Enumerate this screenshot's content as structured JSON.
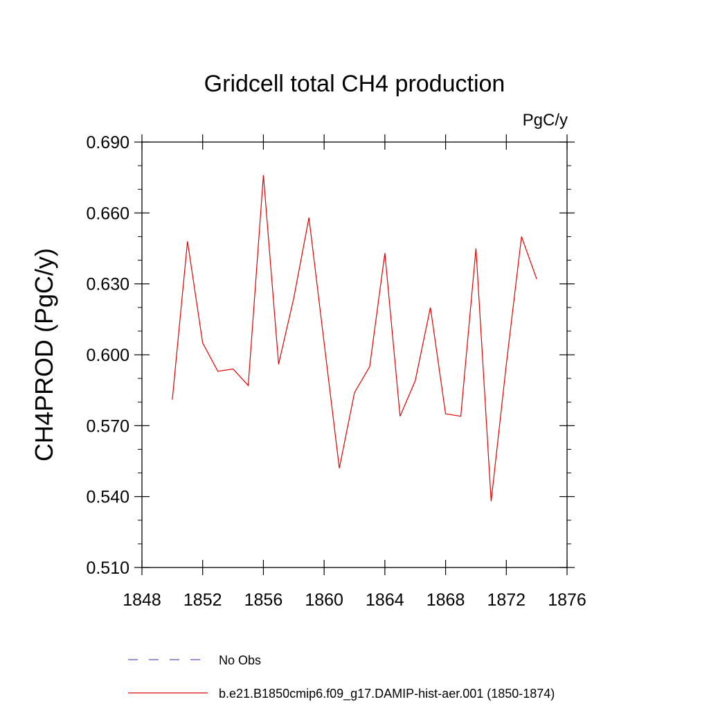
{
  "chart_data": {
    "type": "line",
    "title": "Gridcell total CH4 production",
    "units_label": "PgC/y",
    "ylabel": "CH4PROD  (PgC/y)",
    "xlabel": "",
    "xlim": [
      1848,
      1876
    ],
    "ylim": [
      0.51,
      0.69
    ],
    "x_ticks": [
      1848,
      1852,
      1856,
      1860,
      1864,
      1868,
      1872,
      1876
    ],
    "x_tick_labels": [
      "1848",
      "1852",
      "1856",
      "1860",
      "1864",
      "1868",
      "1872",
      "1876"
    ],
    "y_ticks": [
      0.51,
      0.54,
      0.57,
      0.6,
      0.63,
      0.66,
      0.69
    ],
    "y_tick_labels": [
      "0.510",
      "0.540",
      "0.570",
      "0.600",
      "0.630",
      "0.660",
      "0.690"
    ],
    "grid": false,
    "legend_position": "bottom",
    "series": [
      {
        "name": "No Obs",
        "color": "#5a50c8",
        "dash": "dashed",
        "x": [],
        "values": []
      },
      {
        "name": "b.e21.B1850cmip6.f09_g17.DAMIP-hist-aer.001 (1850-1874)",
        "color": "#e00000",
        "dash": "solid",
        "x": [
          1850,
          1851,
          1852,
          1853,
          1854,
          1855,
          1856,
          1857,
          1858,
          1859,
          1860,
          1861,
          1862,
          1863,
          1864,
          1865,
          1866,
          1867,
          1868,
          1869,
          1870,
          1871,
          1872,
          1873,
          1874
        ],
        "values": [
          0.581,
          0.648,
          0.605,
          0.593,
          0.594,
          0.587,
          0.676,
          0.596,
          0.624,
          0.658,
          0.605,
          0.552,
          0.584,
          0.595,
          0.643,
          0.574,
          0.589,
          0.62,
          0.575,
          0.574,
          0.645,
          0.538,
          0.596,
          0.65,
          0.632
        ]
      }
    ]
  }
}
